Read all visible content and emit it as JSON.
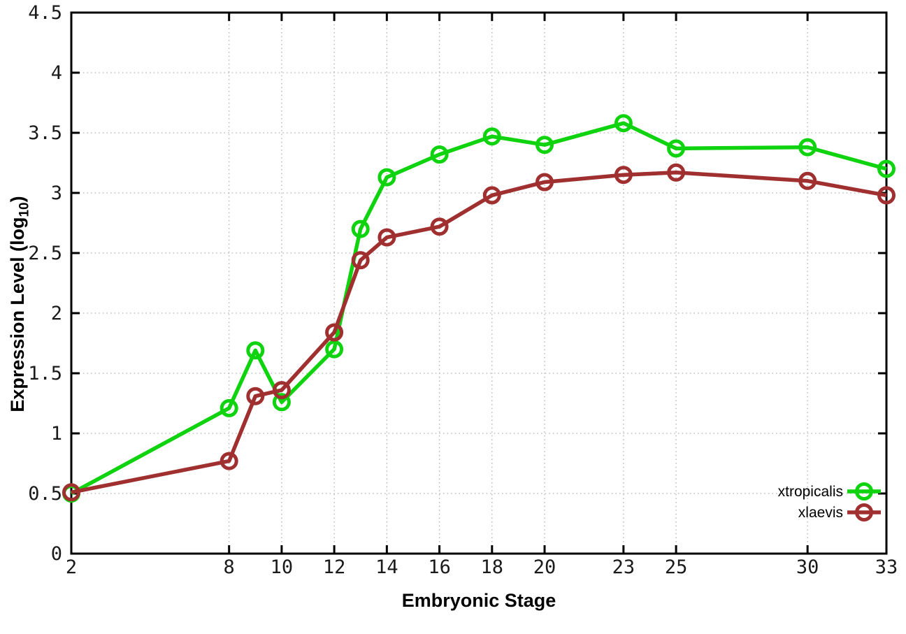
{
  "figure": {
    "background": "#ffffff"
  },
  "chart_data": {
    "type": "line",
    "title": "",
    "xlabel": "Embryonic Stage",
    "ylabel": "Expression Level (log10)",
    "ylabel_parts": {
      "prefix": "Expression Level (log",
      "subscript": "10",
      "suffix": ")"
    },
    "xlim": [
      2,
      33
    ],
    "ylim": [
      0,
      4.5
    ],
    "x_ticks": [
      2,
      8,
      10,
      12,
      14,
      16,
      18,
      20,
      23,
      25,
      30,
      33
    ],
    "y_ticks": [
      0,
      0.5,
      1,
      1.5,
      2,
      2.5,
      3,
      3.5,
      4,
      4.5
    ],
    "grid": true,
    "grid_color": "#b4b4b4",
    "axis_color": "#000000",
    "legend_position": "inside-bottom-right",
    "series": [
      {
        "name": "xtropicalis",
        "color": "#0ed30e",
        "marker": "open-circle",
        "points": [
          [
            2,
            0.5
          ],
          [
            8,
            1.21
          ],
          [
            9,
            1.69
          ],
          [
            10,
            1.26
          ],
          [
            12,
            1.7
          ],
          [
            13,
            2.7
          ],
          [
            14,
            3.13
          ],
          [
            16,
            3.32
          ],
          [
            18,
            3.47
          ],
          [
            20,
            3.4
          ],
          [
            23,
            3.58
          ],
          [
            25,
            3.37
          ],
          [
            30,
            3.38
          ],
          [
            33,
            3.2
          ]
        ]
      },
      {
        "name": "xlaevis",
        "color": "#a03030",
        "marker": "open-circle",
        "points": [
          [
            2,
            0.51
          ],
          [
            8,
            0.77
          ],
          [
            9,
            1.31
          ],
          [
            10,
            1.36
          ],
          [
            12,
            1.84
          ],
          [
            13,
            2.44
          ],
          [
            14,
            2.63
          ],
          [
            16,
            2.72
          ],
          [
            18,
            2.98
          ],
          [
            20,
            3.09
          ],
          [
            23,
            3.15
          ],
          [
            25,
            3.17
          ],
          [
            30,
            3.1
          ],
          [
            33,
            2.98
          ]
        ]
      }
    ]
  }
}
